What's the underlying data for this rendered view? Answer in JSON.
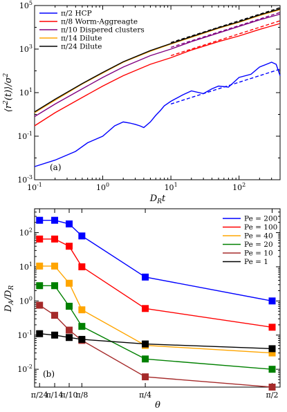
{
  "chart_data": [
    {
      "type": "line",
      "panel_label": "(a)",
      "xlabel": "D_R t",
      "ylabel": "⟨r²(t)⟩/σ²",
      "xscale": "log",
      "yscale": "log",
      "xlim": [
        0.1,
        400
      ],
      "ylim": [
        0.001,
        100000
      ],
      "x_ticks": [
        "10^{-1}",
        "10^{0}",
        "10^{1}",
        "10^{2}"
      ],
      "y_ticks": [
        "10^{-3}",
        "10^{-1}",
        "10^{1}",
        "10^{3}",
        "10^{5}"
      ],
      "legend_position": "top-left",
      "series": [
        {
          "name": "π/2 HCP",
          "color": "#0000ff",
          "x": [
            0.1,
            0.2,
            0.4,
            0.6,
            1,
            1.5,
            2,
            2.5,
            3,
            3.5,
            4,
            5,
            6,
            7,
            8,
            10,
            15,
            20,
            30,
            40,
            50,
            70,
            100,
            150,
            200,
            300,
            350,
            400
          ],
          "y": [
            0.004,
            0.008,
            0.02,
            0.05,
            0.1,
            0.3,
            0.45,
            0.4,
            0.35,
            0.3,
            0.25,
            0.45,
            0.9,
            1.5,
            2.5,
            4,
            8,
            12,
            9,
            15,
            20,
            18,
            50,
            70,
            150,
            250,
            200,
            60
          ]
        },
        {
          "name": "π/8 Worm-Aggreagte",
          "color": "#ff0000",
          "x": [
            0.1,
            0.2,
            0.5,
            1,
            2,
            5,
            10,
            20,
            50,
            100,
            200,
            400
          ],
          "y": [
            0.3,
            1.2,
            6,
            20,
            60,
            200,
            400,
            900,
            2200,
            4000,
            8000,
            15000
          ]
        },
        {
          "name": "π/10 Dispered clusters",
          "color": "#800080",
          "x": [
            0.1,
            0.2,
            0.5,
            1,
            2,
            5,
            10,
            20,
            50,
            100,
            200,
            400
          ],
          "y": [
            0.8,
            3,
            15,
            50,
            150,
            500,
            1000,
            2200,
            5500,
            11000,
            22000,
            40000
          ]
        },
        {
          "name": "π/14 Dilute",
          "color": "#ffa500",
          "x": [
            0.1,
            0.2,
            0.5,
            1,
            2,
            5,
            10,
            20,
            50,
            100,
            200,
            400
          ],
          "y": [
            1.2,
            4.5,
            25,
            80,
            250,
            800,
            1700,
            3500,
            9000,
            17000,
            35000,
            65000
          ]
        },
        {
          "name": "π/24 Dilute",
          "color": "#000000",
          "x": [
            0.1,
            0.2,
            0.5,
            1,
            2,
            5,
            10,
            20,
            50,
            100,
            200,
            400
          ],
          "y": [
            1.3,
            5,
            26,
            85,
            260,
            850,
            1800,
            3700,
            9500,
            18000,
            37000,
            70000
          ]
        }
      ],
      "fit_lines": [
        {
          "color": "#0000ff",
          "x": [
            10,
            400
          ],
          "y": [
            3,
            120
          ]
        },
        {
          "color": "#ff0000",
          "x": [
            10,
            400
          ],
          "y": [
            500,
            20000
          ]
        },
        {
          "color": "#800080",
          "x": [
            10,
            400
          ],
          "y": [
            1200,
            48000
          ]
        },
        {
          "color": "#000000",
          "x": [
            10,
            400
          ],
          "y": [
            2000,
            80000
          ]
        }
      ]
    },
    {
      "type": "line",
      "panel_label": "(b)",
      "xlabel": "θ",
      "ylabel": "D_A/D_R",
      "yscale": "log",
      "categories": [
        "π/24",
        "π/14",
        "π/10",
        "π/8",
        "π/4",
        "π/2"
      ],
      "x_values": [
        0.1309,
        0.2244,
        0.3142,
        0.3927,
        0.7854,
        1.5708
      ],
      "xlim": [
        0.1,
        1.62
      ],
      "ylim": [
        0.003,
        500
      ],
      "y_ticks": [
        "10^{-2}",
        "10^{-1}",
        "10^{0}",
        "10^{1}",
        "10^{2}"
      ],
      "legend_position": "top-right",
      "series": [
        {
          "name": "Pe = 200",
          "color": "#0000ff",
          "values": [
            230,
            230,
            180,
            80,
            5,
            1
          ]
        },
        {
          "name": "Pe = 100",
          "color": "#ff0000",
          "values": [
            65,
            65,
            40,
            10,
            0.6,
            0.17
          ]
        },
        {
          "name": "Pe = 40",
          "color": "#ffa500",
          "values": [
            10.5,
            10.5,
            3.3,
            0.55,
            0.05,
            0.03
          ]
        },
        {
          "name": "Pe = 20",
          "color": "#008000",
          "values": [
            2.8,
            2.8,
            0.7,
            0.18,
            0.02,
            0.01
          ]
        },
        {
          "name": "Pe = 10",
          "color": "#a52a2a",
          "values": [
            0.75,
            0.38,
            0.14,
            0.07,
            0.006,
            0.003
          ]
        },
        {
          "name": "Pe = 1",
          "color": "#000000",
          "values": [
            0.11,
            0.1,
            0.085,
            0.075,
            0.055,
            0.04
          ]
        }
      ]
    }
  ]
}
